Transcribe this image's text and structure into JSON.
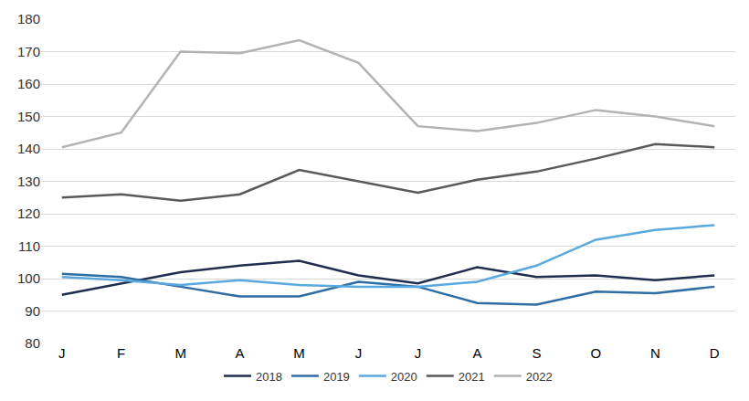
{
  "chart_data": {
    "type": "line",
    "categories": [
      "J",
      "F",
      "M",
      "A",
      "M",
      "J",
      "J",
      "A",
      "S",
      "O",
      "N",
      "D"
    ],
    "series": [
      {
        "name": "2018",
        "color": "#1f2d4f",
        "values": [
          95,
          98.5,
          102,
          104,
          105.5,
          101,
          98.5,
          103.5,
          100.5,
          101,
          99.5,
          101
        ]
      },
      {
        "name": "2019",
        "color": "#2e6da4",
        "values": [
          101.5,
          100.5,
          97.5,
          94.5,
          94.5,
          99,
          97.5,
          92.5,
          92,
          96,
          95.5,
          97.5
        ]
      },
      {
        "name": "2020",
        "color": "#5aa8e0",
        "values": [
          100.5,
          99.5,
          98,
          99.5,
          98,
          97.5,
          97.5,
          99,
          104,
          112,
          115,
          116.5
        ]
      },
      {
        "name": "2021",
        "color": "#595959",
        "values": [
          125,
          126,
          124,
          126,
          133.5,
          130,
          126.5,
          130.5,
          133,
          137,
          141.5,
          140.5
        ]
      },
      {
        "name": "2022",
        "color": "#b3b3b3",
        "values": [
          140.5,
          145,
          170,
          169.5,
          173.5,
          166.5,
          147,
          145.5,
          148,
          152,
          150,
          147
        ]
      }
    ],
    "ylim": [
      80,
      180
    ],
    "yticks": [
      80,
      90,
      100,
      110,
      120,
      130,
      140,
      150,
      160,
      170,
      180
    ],
    "grid": true,
    "legend": "bottom"
  }
}
